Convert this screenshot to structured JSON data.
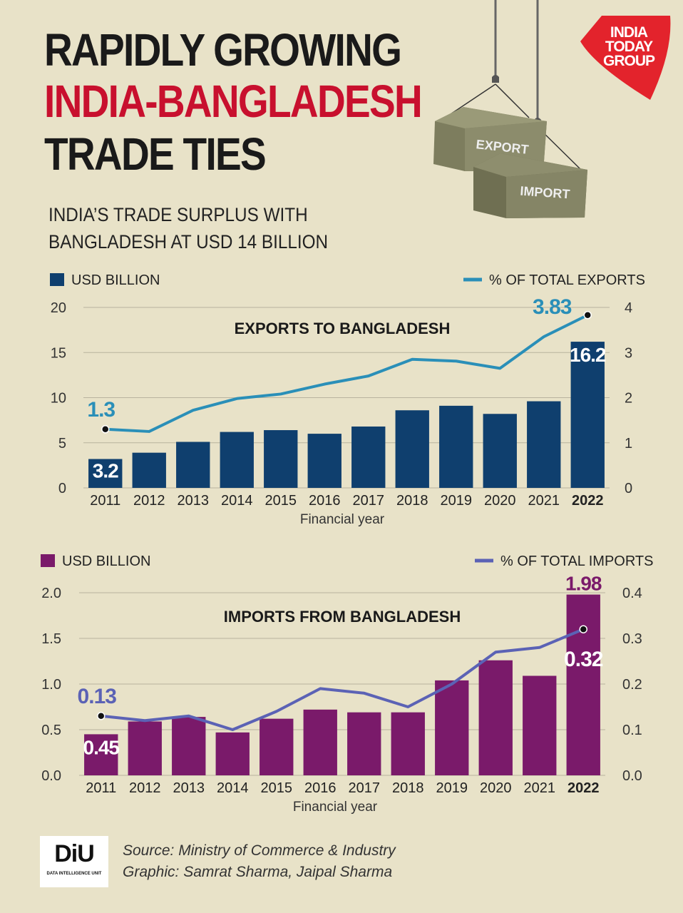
{
  "title": {
    "line1": "RAPIDLY GROWING",
    "line2": "INDIA-BANGLADESH",
    "line3": "TRADE TIES"
  },
  "subtitle": {
    "line1": "INDIA’S TRADE SURPLUS WITH",
    "line2": "BANGLADESH AT USD 14 BILLION"
  },
  "logo": {
    "line1": "INDIA",
    "line2": "TODAY",
    "line3": "GROUP"
  },
  "illustration": {
    "container1": "EXPORT",
    "container2": "IMPORT"
  },
  "colors": {
    "background": "#e8e2c8",
    "export_bar": "#0f3f6e",
    "export_line": "#2a8fb8",
    "import_bar": "#7a1a6a",
    "import_line": "#5b62b5",
    "accent_red": "#c8102e"
  },
  "chart_data": [
    {
      "type": "bar",
      "title": "EXPORTS TO BANGLADESH",
      "xlabel": "Financial year",
      "categories": [
        "2011",
        "2012",
        "2013",
        "2014",
        "2015",
        "2016",
        "2017",
        "2018",
        "2019",
        "2020",
        "2021",
        "2022"
      ],
      "series": [
        {
          "name": "USD BILLION",
          "axis": "left",
          "type": "bar",
          "values": [
            3.2,
            3.9,
            5.1,
            6.2,
            6.4,
            6.0,
            6.8,
            8.6,
            9.1,
            8.2,
            9.6,
            16.2
          ]
        },
        {
          "name": "% OF TOTAL EXPORTS",
          "axis": "right",
          "type": "line",
          "values": [
            1.3,
            1.25,
            1.72,
            1.98,
            2.08,
            2.3,
            2.48,
            2.85,
            2.81,
            2.65,
            3.35,
            3.83
          ]
        }
      ],
      "ylim_left": [
        0,
        20
      ],
      "yticks_left": [
        "0",
        "5",
        "10",
        "15",
        "20"
      ],
      "ylim_right": [
        0,
        4
      ],
      "yticks_right": [
        "0",
        "1",
        "2",
        "3",
        "4"
      ],
      "annotations": {
        "first_bar": "3.2",
        "last_bar": "16.2",
        "first_point": "1.3",
        "last_point": "3.83"
      },
      "legend": "top"
    },
    {
      "type": "bar",
      "title": "IMPORTS FROM BANGLADESH",
      "xlabel": "Financial year",
      "categories": [
        "2011",
        "2012",
        "2013",
        "2014",
        "2015",
        "2016",
        "2017",
        "2018",
        "2019",
        "2020",
        "2021",
        "2022"
      ],
      "series": [
        {
          "name": "USD BILLION",
          "axis": "left",
          "type": "bar",
          "values": [
            0.45,
            0.59,
            0.64,
            0.47,
            0.62,
            0.72,
            0.69,
            0.69,
            1.04,
            1.26,
            1.09,
            1.98
          ]
        },
        {
          "name": "% OF TOTAL IMPORTS",
          "axis": "right",
          "type": "line",
          "values": [
            0.13,
            0.12,
            0.13,
            0.1,
            0.14,
            0.19,
            0.18,
            0.15,
            0.2,
            0.27,
            0.28,
            0.32
          ]
        }
      ],
      "ylim_left": [
        0,
        2.0
      ],
      "yticks_left": [
        "0.0",
        "0.5",
        "1.0",
        "1.5",
        "2.0"
      ],
      "ylim_right": [
        0,
        0.4
      ],
      "yticks_right": [
        "0.0",
        "0.1",
        "0.2",
        "0.3",
        "0.4"
      ],
      "annotations": {
        "first_bar": "0.45",
        "last_bar": "1.98",
        "first_point": "0.13",
        "last_point": "0.32"
      },
      "legend": "top"
    }
  ],
  "footer": {
    "source": "Source: Ministry of Commerce & Industry",
    "graphic": "Graphic: Samrat Sharma, Jaipal Sharma",
    "diu_logo": "DiU",
    "diu_sub": "DATA INTELLIGENCE UNIT"
  }
}
